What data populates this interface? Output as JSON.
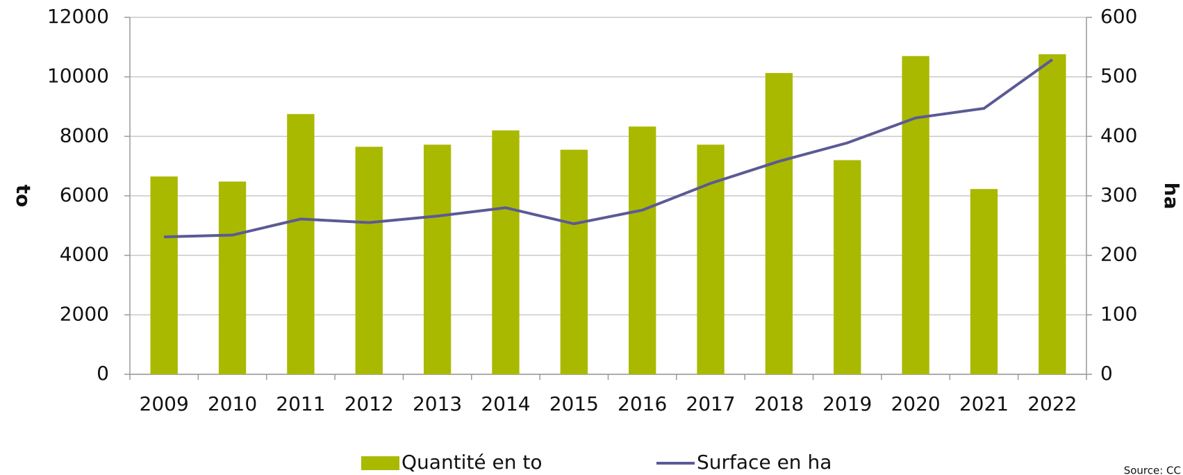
{
  "chart_data": {
    "type": "bar_line",
    "categories": [
      "2009",
      "2010",
      "2011",
      "2012",
      "2013",
      "2014",
      "2015",
      "2016",
      "2017",
      "2018",
      "2019",
      "2020",
      "2021",
      "2022"
    ],
    "series": [
      {
        "name": "Quantité en to",
        "type": "bar",
        "color": "#a9b900",
        "values": [
          6650,
          6480,
          8750,
          7650,
          7720,
          8200,
          7550,
          8330,
          7720,
          10130,
          7200,
          10700,
          6230,
          10760
        ]
      },
      {
        "name": "Surface en ha",
        "type": "line",
        "axis": "y2",
        "color": "#5b5a96",
        "values": [
          231,
          234,
          261,
          255,
          266,
          280,
          253,
          276,
          321,
          358,
          389,
          431,
          447,
          529
        ]
      }
    ],
    "ylabel": "to",
    "y2label": "ha",
    "ylim": [
      0,
      12000
    ],
    "yticks": [
      0,
      2000,
      4000,
      6000,
      8000,
      10000,
      12000
    ],
    "y2lim": [
      0,
      600
    ],
    "y2ticks": [
      0,
      100,
      200,
      300,
      400,
      500,
      600
    ],
    "grid": true,
    "legend": "bottom",
    "source": "Source: CC"
  }
}
